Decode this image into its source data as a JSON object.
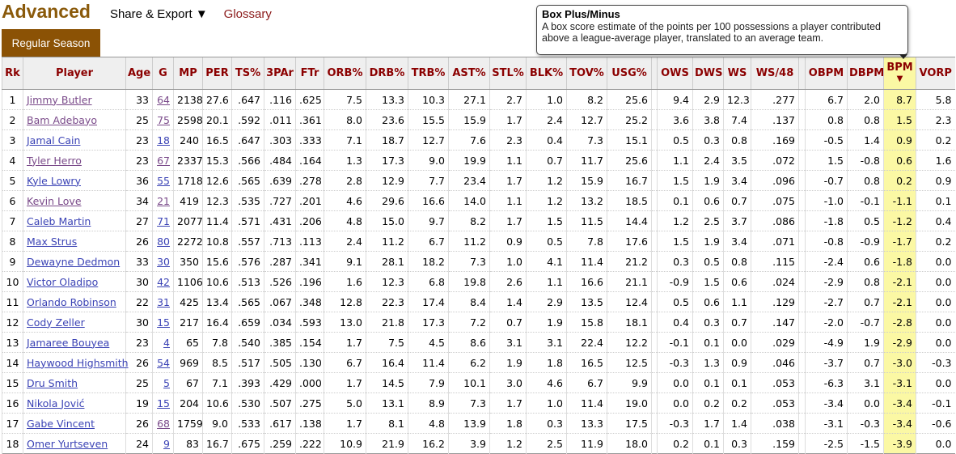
{
  "header": {
    "title": "Advanced",
    "share_export": "Share & Export ▼",
    "glossary": "Glossary"
  },
  "tab": "Regular Season",
  "tooltip": {
    "title": "Box Plus/Minus",
    "line1": "A box score estimate of the points per 100 possessions a player contributed",
    "line2": "above a league-average player, translated to an average team."
  },
  "sort_indicator": "▼",
  "columns": [
    "Rk",
    "Player",
    "Age",
    "G",
    "MP",
    "PER",
    "TS%",
    "3PAr",
    "FTr",
    "ORB%",
    "DRB%",
    "TRB%",
    "AST%",
    "STL%",
    "BLK%",
    "TOV%",
    "USG%",
    "",
    "OWS",
    "DWS",
    "WS",
    "WS/48",
    "",
    "OBPM",
    "DBPM",
    "BPM",
    "VORP"
  ],
  "rows": [
    [
      "1",
      "Jimmy Butler",
      "33",
      "64",
      "2138",
      "27.6",
      ".647",
      ".116",
      ".625",
      "7.5",
      "13.3",
      "10.3",
      "27.1",
      "2.7",
      "1.0",
      "8.2",
      "25.6",
      "",
      "9.4",
      "2.9",
      "12.3",
      ".277",
      "",
      "6.7",
      "2.0",
      "8.7",
      "5.8"
    ],
    [
      "2",
      "Bam Adebayo",
      "25",
      "75",
      "2598",
      "20.1",
      ".592",
      ".011",
      ".361",
      "8.0",
      "23.6",
      "15.5",
      "15.9",
      "1.7",
      "2.4",
      "12.7",
      "25.2",
      "",
      "3.6",
      "3.8",
      "7.4",
      ".137",
      "",
      "0.8",
      "0.8",
      "1.5",
      "2.3"
    ],
    [
      "3",
      "Jamal Cain",
      "23",
      "18",
      "240",
      "16.5",
      ".647",
      ".303",
      ".333",
      "7.1",
      "18.7",
      "12.7",
      "7.6",
      "2.3",
      "0.4",
      "7.3",
      "15.1",
      "",
      "0.5",
      "0.3",
      "0.8",
      ".169",
      "",
      "-0.5",
      "1.4",
      "0.9",
      "0.2"
    ],
    [
      "4",
      "Tyler Herro",
      "23",
      "67",
      "2337",
      "15.3",
      ".566",
      ".484",
      ".164",
      "1.3",
      "17.3",
      "9.0",
      "19.9",
      "1.1",
      "0.7",
      "11.7",
      "25.6",
      "",
      "1.1",
      "2.4",
      "3.5",
      ".072",
      "",
      "1.5",
      "-0.8",
      "0.6",
      "1.6"
    ],
    [
      "5",
      "Kyle Lowry",
      "36",
      "55",
      "1718",
      "12.6",
      ".565",
      ".639",
      ".278",
      "2.8",
      "12.9",
      "7.7",
      "23.4",
      "1.7",
      "1.2",
      "15.9",
      "16.7",
      "",
      "1.5",
      "1.9",
      "3.4",
      ".096",
      "",
      "-0.7",
      "0.8",
      "0.2",
      "0.9"
    ],
    [
      "6",
      "Kevin Love",
      "34",
      "21",
      "419",
      "12.3",
      ".535",
      ".727",
      ".201",
      "4.6",
      "29.6",
      "16.6",
      "14.0",
      "1.1",
      "1.2",
      "13.2",
      "18.5",
      "",
      "0.1",
      "0.6",
      "0.7",
      ".075",
      "",
      "-1.0",
      "-0.1",
      "-1.1",
      "0.1"
    ],
    [
      "7",
      "Caleb Martin",
      "27",
      "71",
      "2077",
      "11.4",
      ".571",
      ".431",
      ".206",
      "4.8",
      "15.0",
      "9.7",
      "8.2",
      "1.7",
      "1.5",
      "11.5",
      "14.4",
      "",
      "1.2",
      "2.5",
      "3.7",
      ".086",
      "",
      "-1.8",
      "0.5",
      "-1.2",
      "0.4"
    ],
    [
      "8",
      "Max Strus",
      "26",
      "80",
      "2272",
      "10.8",
      ".557",
      ".713",
      ".113",
      "2.4",
      "11.2",
      "6.7",
      "11.2",
      "0.9",
      "0.5",
      "7.8",
      "17.6",
      "",
      "1.5",
      "1.9",
      "3.4",
      ".071",
      "",
      "-0.8",
      "-0.9",
      "-1.7",
      "0.2"
    ],
    [
      "9",
      "Dewayne Dedmon",
      "33",
      "30",
      "350",
      "15.6",
      ".576",
      ".287",
      ".341",
      "9.1",
      "28.1",
      "18.2",
      "7.3",
      "1.0",
      "4.1",
      "11.4",
      "21.2",
      "",
      "0.3",
      "0.5",
      "0.8",
      ".115",
      "",
      "-2.4",
      "0.6",
      "-1.8",
      "0.0"
    ],
    [
      "10",
      "Victor Oladipo",
      "30",
      "42",
      "1106",
      "10.6",
      ".513",
      ".526",
      ".196",
      "1.6",
      "12.3",
      "6.8",
      "19.8",
      "2.6",
      "1.1",
      "16.6",
      "21.1",
      "",
      "-0.9",
      "1.5",
      "0.6",
      ".024",
      "",
      "-2.9",
      "0.8",
      "-2.1",
      "0.0"
    ],
    [
      "11",
      "Orlando Robinson",
      "22",
      "31",
      "425",
      "13.4",
      ".565",
      ".067",
      ".348",
      "12.8",
      "22.3",
      "17.4",
      "8.4",
      "1.4",
      "2.9",
      "13.5",
      "12.4",
      "",
      "0.5",
      "0.6",
      "1.1",
      ".129",
      "",
      "-2.7",
      "0.7",
      "-2.1",
      "0.0"
    ],
    [
      "12",
      "Cody Zeller",
      "30",
      "15",
      "217",
      "16.4",
      ".659",
      ".034",
      ".593",
      "13.0",
      "21.8",
      "17.3",
      "7.2",
      "0.7",
      "1.9",
      "15.8",
      "18.1",
      "",
      "0.4",
      "0.3",
      "0.7",
      ".147",
      "",
      "-2.0",
      "-0.7",
      "-2.8",
      "0.0"
    ],
    [
      "13",
      "Jamaree Bouyea",
      "23",
      "4",
      "65",
      "7.8",
      ".540",
      ".385",
      ".154",
      "1.7",
      "7.5",
      "4.5",
      "8.6",
      "3.1",
      "3.1",
      "22.4",
      "12.2",
      "",
      "-0.1",
      "0.1",
      "0.0",
      ".029",
      "",
      "-4.9",
      "1.9",
      "-2.9",
      "0.0"
    ],
    [
      "14",
      "Haywood Highsmith",
      "26",
      "54",
      "969",
      "8.5",
      ".517",
      ".505",
      ".130",
      "6.7",
      "16.4",
      "11.4",
      "6.2",
      "1.9",
      "1.8",
      "16.5",
      "12.5",
      "",
      "-0.3",
      "1.3",
      "0.9",
      ".046",
      "",
      "-3.7",
      "0.7",
      "-3.0",
      "-0.3"
    ],
    [
      "15",
      "Dru Smith",
      "25",
      "5",
      "67",
      "7.1",
      ".393",
      ".429",
      ".000",
      "1.7",
      "14.5",
      "7.9",
      "10.1",
      "3.0",
      "4.6",
      "6.7",
      "9.9",
      "",
      "0.0",
      "0.1",
      "0.1",
      ".053",
      "",
      "-6.3",
      "3.1",
      "-3.1",
      "0.0"
    ],
    [
      "16",
      "Nikola Jović",
      "19",
      "15",
      "204",
      "10.6",
      ".530",
      ".507",
      ".275",
      "5.0",
      "13.1",
      "8.9",
      "7.3",
      "1.7",
      "1.0",
      "11.4",
      "19.0",
      "",
      "0.0",
      "0.2",
      "0.2",
      ".053",
      "",
      "-3.4",
      "0.0",
      "-3.4",
      "-0.1"
    ],
    [
      "17",
      "Gabe Vincent",
      "26",
      "68",
      "1759",
      "9.0",
      ".533",
      ".617",
      ".138",
      "1.7",
      "8.1",
      "4.8",
      "13.9",
      "1.8",
      "0.3",
      "13.3",
      "17.5",
      "",
      "-0.3",
      "1.7",
      "1.4",
      ".038",
      "",
      "-3.1",
      "-0.3",
      "-3.4",
      "-0.6"
    ],
    [
      "18",
      "Omer Yurtseven",
      "24",
      "9",
      "83",
      "16.7",
      ".675",
      ".259",
      ".222",
      "10.9",
      "21.9",
      "16.2",
      "3.9",
      "1.2",
      "2.5",
      "11.9",
      "18.0",
      "",
      "0.2",
      "0.1",
      "0.3",
      ".159",
      "",
      "-2.5",
      "-1.5",
      "-3.9",
      "0.0"
    ]
  ],
  "visited_players": [
    "1",
    "2",
    "4",
    "6"
  ],
  "visited_games": [
    "1",
    "2",
    "4",
    "6",
    "17"
  ]
}
